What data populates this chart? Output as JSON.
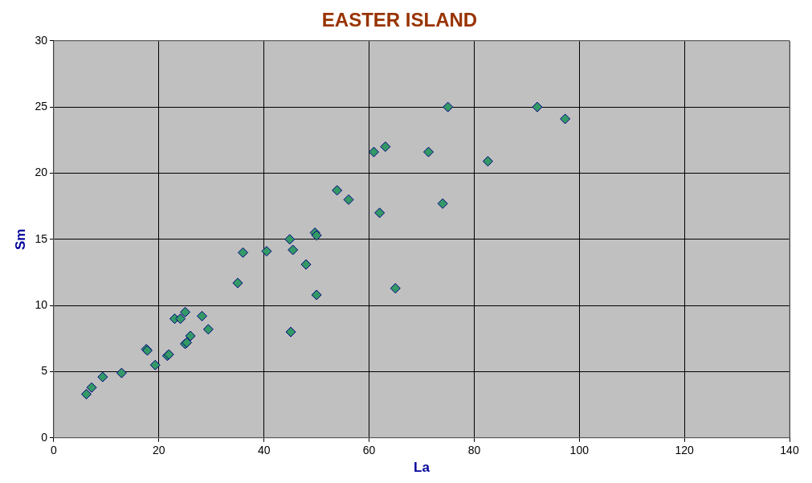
{
  "chart_data": {
    "type": "scatter",
    "title": "EASTER ISLAND",
    "xlabel": "La",
    "ylabel": "Sm",
    "x": [
      6.2,
      7.2,
      9.3,
      12.9,
      17.6,
      17.8,
      19.3,
      21.6,
      21.9,
      23.0,
      24.1,
      25.0,
      25.0,
      25.3,
      26.0,
      28.2,
      29.4,
      35.0,
      36.0,
      40.5,
      44.9,
      45.1,
      45.5,
      48.0,
      49.7,
      50.0,
      50.0,
      53.9,
      56.1,
      60.9,
      62.0,
      63.1,
      65.0,
      71.3,
      74.0,
      75.0,
      82.6,
      92.0,
      97.3
    ],
    "series": [
      {
        "color": "#339966",
        "values": [
          3.3,
          3.8,
          4.6,
          4.9,
          6.7,
          6.6,
          5.5,
          6.2,
          6.3,
          9.0,
          9.0,
          9.5,
          7.1,
          7.2,
          7.7,
          9.2,
          8.2,
          11.7,
          14.0,
          14.1,
          15.0,
          8.0,
          14.2,
          13.1,
          15.5,
          15.3,
          10.8,
          18.7,
          18.0,
          21.6,
          17.0,
          22.0,
          11.3,
          21.6,
          17.7,
          25.0,
          20.9,
          25.0,
          24.1
        ]
      }
    ],
    "xlim": [
      0,
      140
    ],
    "xticks": [
      0,
      20,
      40,
      60,
      80,
      100,
      120,
      140
    ],
    "ylim": [
      0,
      30
    ],
    "yticks": [
      0,
      5,
      10,
      15,
      20,
      25,
      30
    ],
    "grid": true,
    "legend": false,
    "marker": "diamond"
  }
}
